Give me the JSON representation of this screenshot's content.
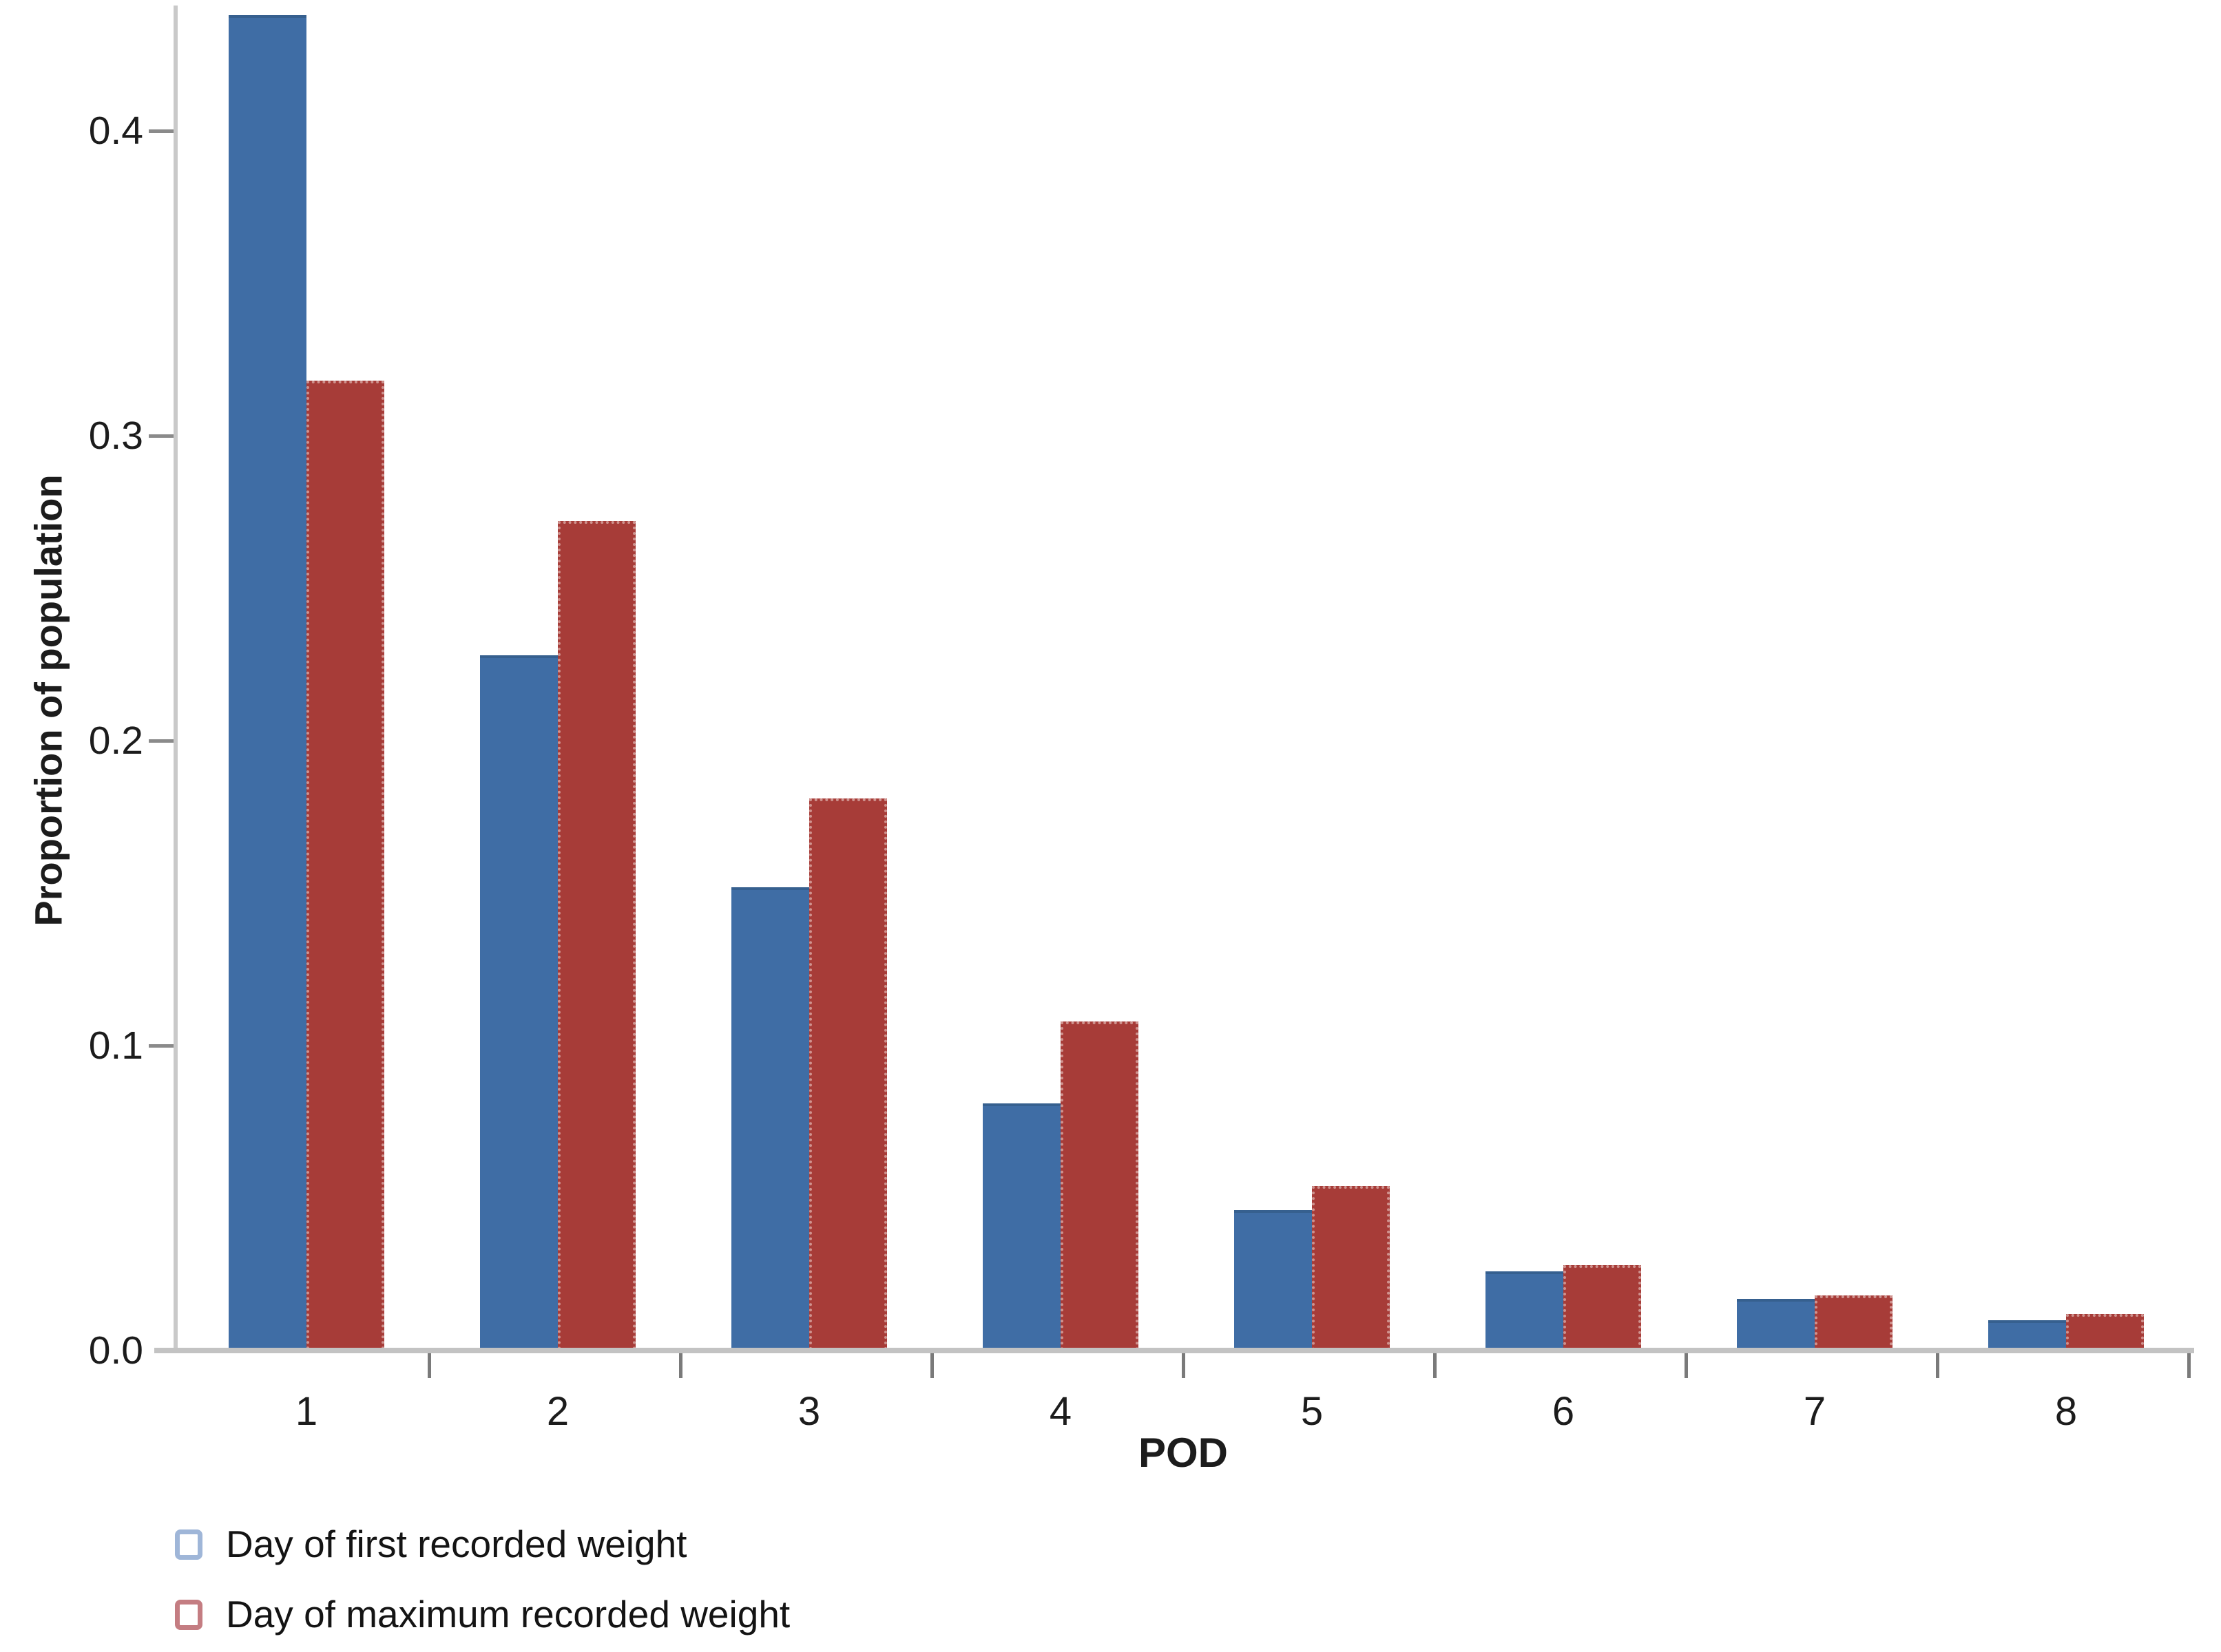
{
  "chart_data": {
    "type": "bar",
    "title": "",
    "xlabel": "POD",
    "ylabel": "Proportion of population",
    "categories": [
      "1",
      "2",
      "3",
      "4",
      "5",
      "6",
      "7",
      "8"
    ],
    "series": [
      {
        "name": "Day of first recorded weight",
        "color": "#3f6da5",
        "legend_marker_color": "#9fb6d8",
        "values": [
          0.438,
          0.228,
          0.152,
          0.081,
          0.046,
          0.026,
          0.017,
          0.01
        ]
      },
      {
        "name": "Day of maximum recorded weight",
        "color": "#a73c38",
        "legend_marker_color": "#c47d82",
        "values": [
          0.318,
          0.272,
          0.181,
          0.108,
          0.054,
          0.028,
          0.018,
          0.012
        ]
      }
    ],
    "ylim": [
      0,
      0.442
    ],
    "yticks": [
      "0.0",
      "0.1",
      "0.2",
      "0.3",
      "0.4"
    ],
    "grid": false,
    "legend_position": "bottom-left",
    "legend_marker_style": "open-square",
    "axis_color": "#c3c3c3",
    "tick_color": "#7a7a7a",
    "text_color": "#1c1c1c"
  }
}
